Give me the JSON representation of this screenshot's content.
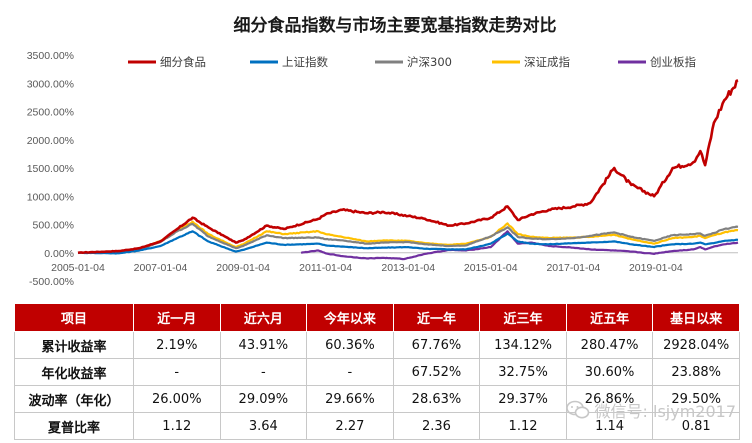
{
  "chart_data": {
    "type": "line",
    "title": "细分食品指数与市场主要宽基指数走势对比",
    "x_ticks": [
      "2005-01-04",
      "2007-01-04",
      "2009-01-04",
      "2011-01-04",
      "2013-01-04",
      "2015-01-04",
      "2017-01-04",
      "2019-01-04"
    ],
    "y_ticks": [
      "-500.00%",
      "0.00%",
      "500.00%",
      "1000.00%",
      "1500.00%",
      "2000.00%",
      "2500.00%",
      "3000.00%",
      "3500.00%"
    ],
    "ylim": [
      -500,
      3500
    ],
    "xlim": [
      "2005-01-04",
      "2020-12-31"
    ],
    "y_unit": "%",
    "legend_position": "top",
    "series": [
      {
        "name": "细分食品",
        "color": "#c00000",
        "x": [
          "2005-01-04",
          "2006-01-01",
          "2006-07-01",
          "2007-01-04",
          "2007-06-01",
          "2007-10-15",
          "2008-03-01",
          "2008-11-01",
          "2009-01-04",
          "2009-08-01",
          "2010-01-01",
          "2010-11-01",
          "2011-01-04",
          "2011-06-01",
          "2012-01-01",
          "2012-06-01",
          "2013-01-04",
          "2013-06-01",
          "2014-01-01",
          "2014-06-01",
          "2015-01-04",
          "2015-06-01",
          "2015-09-01",
          "2016-01-01",
          "2016-06-01",
          "2017-01-04",
          "2017-06-01",
          "2018-01-01",
          "2018-06-01",
          "2018-12-20",
          "2019-01-04",
          "2019-06-01",
          "2019-12-01",
          "2020-02-01",
          "2020-03-15",
          "2020-06-01",
          "2020-09-01",
          "2020-12-31"
        ],
        "values": [
          0,
          30,
          80,
          200,
          420,
          620,
          450,
          180,
          220,
          480,
          420,
          600,
          680,
          760,
          700,
          720,
          650,
          600,
          480,
          520,
          620,
          820,
          580,
          680,
          760,
          820,
          880,
          1500,
          1200,
          1000,
          1040,
          1500,
          1600,
          1800,
          1550,
          2300,
          2700,
          3050
        ]
      },
      {
        "name": "上证指数",
        "color": "#0070c0",
        "x": [
          "2005-01-04",
          "2006-01-01",
          "2006-07-01",
          "2007-01-04",
          "2007-06-01",
          "2007-10-15",
          "2008-03-01",
          "2008-11-01",
          "2009-01-04",
          "2009-08-01",
          "2010-01-01",
          "2010-11-01",
          "2011-01-04",
          "2011-06-01",
          "2012-01-01",
          "2012-06-01",
          "2013-01-04",
          "2013-06-01",
          "2014-01-01",
          "2014-06-01",
          "2015-01-04",
          "2015-06-01",
          "2015-09-01",
          "2016-01-01",
          "2016-06-01",
          "2017-01-04",
          "2017-06-01",
          "2018-01-01",
          "2018-06-01",
          "2018-12-20",
          "2019-01-04",
          "2019-06-01",
          "2019-12-01",
          "2020-02-01",
          "2020-03-15",
          "2020-06-01",
          "2020-09-01",
          "2020-12-31"
        ],
        "values": [
          0,
          -10,
          40,
          120,
          260,
          380,
          200,
          20,
          50,
          180,
          140,
          160,
          130,
          110,
          80,
          90,
          100,
          70,
          60,
          60,
          160,
          340,
          200,
          160,
          150,
          170,
          180,
          200,
          150,
          100,
          110,
          150,
          160,
          180,
          150,
          170,
          210,
          230
        ]
      },
      {
        "name": "沪深300",
        "color": "#808080",
        "x": [
          "2005-01-04",
          "2006-01-01",
          "2006-07-01",
          "2007-01-04",
          "2007-06-01",
          "2007-10-15",
          "2008-03-01",
          "2008-11-01",
          "2009-01-04",
          "2009-08-01",
          "2010-01-01",
          "2010-11-01",
          "2011-01-04",
          "2011-06-01",
          "2012-01-01",
          "2012-06-01",
          "2013-01-04",
          "2013-06-01",
          "2014-01-01",
          "2014-06-01",
          "2015-01-04",
          "2015-06-01",
          "2015-09-01",
          "2016-01-01",
          "2016-06-01",
          "2017-01-04",
          "2017-06-01",
          "2018-01-01",
          "2018-06-01",
          "2018-12-20",
          "2019-01-04",
          "2019-06-01",
          "2019-12-01",
          "2020-02-01",
          "2020-03-15",
          "2020-06-01",
          "2020-09-01",
          "2020-12-31"
        ],
        "values": [
          0,
          0,
          60,
          190,
          380,
          510,
          290,
          80,
          120,
          310,
          260,
          270,
          240,
          220,
          160,
          180,
          190,
          150,
          120,
          130,
          290,
          450,
          280,
          250,
          240,
          260,
          300,
          360,
          280,
          210,
          220,
          310,
          330,
          340,
          300,
          350,
          420,
          460
        ]
      },
      {
        "name": "深证成指",
        "color": "#ffc000",
        "x": [
          "2005-01-04",
          "2006-01-01",
          "2006-07-01",
          "2007-01-04",
          "2007-06-01",
          "2007-10-15",
          "2008-03-01",
          "2008-11-01",
          "2009-01-04",
          "2009-08-01",
          "2010-01-01",
          "2010-11-01",
          "2011-01-04",
          "2011-06-01",
          "2012-01-01",
          "2012-06-01",
          "2013-01-04",
          "2013-06-01",
          "2014-01-01",
          "2014-06-01",
          "2015-01-04",
          "2015-06-01",
          "2015-09-01",
          "2016-01-01",
          "2016-06-01",
          "2017-01-04",
          "2017-06-01",
          "2018-01-01",
          "2018-06-01",
          "2018-12-20",
          "2019-01-04",
          "2019-06-01",
          "2019-12-01",
          "2020-02-01",
          "2020-03-15",
          "2020-06-01",
          "2020-09-01",
          "2020-12-31"
        ],
        "values": [
          0,
          10,
          70,
          210,
          400,
          550,
          330,
          100,
          150,
          380,
          330,
          380,
          330,
          280,
          200,
          220,
          210,
          170,
          140,
          160,
          280,
          520,
          330,
          280,
          260,
          270,
          280,
          320,
          240,
          160,
          170,
          260,
          280,
          300,
          260,
          310,
          360,
          400
        ]
      },
      {
        "name": "创业板指",
        "color": "#7030a0",
        "x": [
          "2010-06-01",
          "2010-11-01",
          "2011-01-04",
          "2011-06-01",
          "2012-01-01",
          "2012-06-01",
          "2012-12-01",
          "2013-06-01",
          "2014-01-01",
          "2014-06-01",
          "2015-01-04",
          "2015-06-01",
          "2015-09-01",
          "2016-01-01",
          "2016-06-01",
          "2017-01-04",
          "2017-06-01",
          "2018-01-01",
          "2018-06-01",
          "2018-12-20",
          "2019-01-04",
          "2019-06-01",
          "2019-12-01",
          "2020-02-01",
          "2020-03-15",
          "2020-06-01",
          "2020-09-01",
          "2020-12-31"
        ],
        "values": [
          0,
          40,
          -10,
          -60,
          -100,
          -90,
          -110,
          -20,
          50,
          40,
          100,
          380,
          160,
          180,
          120,
          90,
          60,
          40,
          20,
          -20,
          -10,
          30,
          60,
          100,
          60,
          110,
          150,
          180
        ]
      }
    ]
  },
  "table": {
    "headers": [
      "项目",
      "近一月",
      "近六月",
      "今年以来",
      "近一年",
      "近三年",
      "近五年",
      "基日以来"
    ],
    "rows": [
      {
        "label": "累计收益率",
        "values": [
          "2.19%",
          "43.91%",
          "60.36%",
          "67.76%",
          "134.12%",
          "280.47%",
          "2928.04%"
        ]
      },
      {
        "label": "年化收益率",
        "values": [
          "-",
          "-",
          "-",
          "67.52%",
          "32.75%",
          "30.60%",
          "23.88%"
        ]
      },
      {
        "label": "波动率（年化）",
        "values": [
          "26.00%",
          "29.09%",
          "29.66%",
          "28.63%",
          "29.37%",
          "26.86%",
          "29.50%"
        ]
      },
      {
        "label": "夏普比率",
        "values": [
          "1.12",
          "3.64",
          "2.27",
          "2.36",
          "1.12",
          "1.14",
          "0.81"
        ]
      }
    ]
  },
  "watermark": {
    "text": "微信号: lsjym2017",
    "icon": "wechat-icon"
  }
}
